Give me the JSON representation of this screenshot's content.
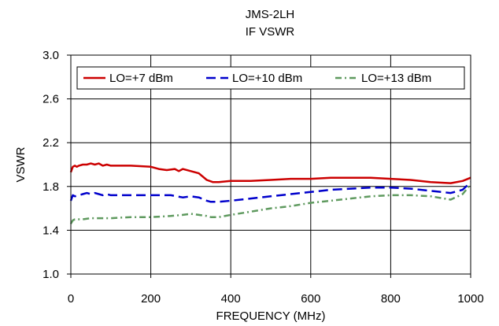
{
  "chart_data": {
    "type": "line",
    "title": "JMS-2LH",
    "subtitle": "IF VSWR",
    "xlabel": "FREQUENCY (MHz)",
    "ylabel": "VSWR",
    "xlim": [
      0,
      1000
    ],
    "ylim": [
      1.0,
      3.0
    ],
    "x_ticks": [
      0,
      200,
      400,
      600,
      800,
      1000
    ],
    "y_ticks": [
      1.0,
      1.4,
      1.8,
      2.2,
      2.6,
      3.0
    ],
    "x_tick_labels": [
      "0",
      "200",
      "400",
      "600",
      "800",
      "1000"
    ],
    "y_tick_labels": [
      "1.0",
      "1.4",
      "1.8",
      "2.2",
      "2.6",
      "3.0"
    ],
    "grid": true,
    "legend_position": "top",
    "series": [
      {
        "name": "LO=+7 dBm",
        "color": "#cc0000",
        "dash": "solid",
        "points": [
          [
            0,
            1.93
          ],
          [
            5,
            1.98
          ],
          [
            10,
            1.99
          ],
          [
            15,
            1.98
          ],
          [
            20,
            1.99
          ],
          [
            30,
            2.0
          ],
          [
            40,
            2.0
          ],
          [
            50,
            2.01
          ],
          [
            60,
            2.0
          ],
          [
            70,
            2.01
          ],
          [
            80,
            1.99
          ],
          [
            90,
            2.0
          ],
          [
            100,
            1.99
          ],
          [
            150,
            1.99
          ],
          [
            200,
            1.98
          ],
          [
            220,
            1.96
          ],
          [
            240,
            1.95
          ],
          [
            260,
            1.96
          ],
          [
            270,
            1.94
          ],
          [
            280,
            1.96
          ],
          [
            300,
            1.94
          ],
          [
            320,
            1.92
          ],
          [
            340,
            1.86
          ],
          [
            355,
            1.84
          ],
          [
            370,
            1.84
          ],
          [
            400,
            1.85
          ],
          [
            450,
            1.85
          ],
          [
            500,
            1.86
          ],
          [
            550,
            1.87
          ],
          [
            600,
            1.87
          ],
          [
            650,
            1.88
          ],
          [
            700,
            1.88
          ],
          [
            750,
            1.88
          ],
          [
            800,
            1.87
          ],
          [
            850,
            1.86
          ],
          [
            900,
            1.84
          ],
          [
            950,
            1.83
          ],
          [
            980,
            1.85
          ],
          [
            1000,
            1.88
          ]
        ]
      },
      {
        "name": "LO=+10 dBm",
        "color": "#0000cc",
        "dash": "dashed",
        "points": [
          [
            0,
            1.67
          ],
          [
            5,
            1.72
          ],
          [
            10,
            1.71
          ],
          [
            20,
            1.72
          ],
          [
            30,
            1.73
          ],
          [
            40,
            1.74
          ],
          [
            50,
            1.73
          ],
          [
            60,
            1.74
          ],
          [
            70,
            1.73
          ],
          [
            80,
            1.72
          ],
          [
            90,
            1.73
          ],
          [
            100,
            1.72
          ],
          [
            150,
            1.72
          ],
          [
            200,
            1.72
          ],
          [
            250,
            1.72
          ],
          [
            280,
            1.7
          ],
          [
            300,
            1.71
          ],
          [
            320,
            1.7
          ],
          [
            340,
            1.67
          ],
          [
            350,
            1.66
          ],
          [
            370,
            1.66
          ],
          [
            400,
            1.67
          ],
          [
            450,
            1.69
          ],
          [
            500,
            1.71
          ],
          [
            550,
            1.73
          ],
          [
            600,
            1.75
          ],
          [
            650,
            1.77
          ],
          [
            700,
            1.78
          ],
          [
            750,
            1.79
          ],
          [
            800,
            1.79
          ],
          [
            850,
            1.78
          ],
          [
            900,
            1.76
          ],
          [
            950,
            1.74
          ],
          [
            980,
            1.77
          ],
          [
            1000,
            1.84
          ]
        ]
      },
      {
        "name": "LO=+13 dBm",
        "color": "#5f9a5f",
        "dash": "dashdot",
        "points": [
          [
            0,
            1.46
          ],
          [
            5,
            1.49
          ],
          [
            10,
            1.5
          ],
          [
            20,
            1.5
          ],
          [
            30,
            1.5
          ],
          [
            50,
            1.51
          ],
          [
            100,
            1.51
          ],
          [
            150,
            1.52
          ],
          [
            200,
            1.52
          ],
          [
            250,
            1.53
          ],
          [
            280,
            1.54
          ],
          [
            300,
            1.55
          ],
          [
            320,
            1.54
          ],
          [
            340,
            1.53
          ],
          [
            350,
            1.52
          ],
          [
            370,
            1.52
          ],
          [
            400,
            1.54
          ],
          [
            450,
            1.57
          ],
          [
            500,
            1.6
          ],
          [
            550,
            1.62
          ],
          [
            600,
            1.65
          ],
          [
            650,
            1.67
          ],
          [
            700,
            1.69
          ],
          [
            750,
            1.71
          ],
          [
            800,
            1.72
          ],
          [
            850,
            1.72
          ],
          [
            900,
            1.71
          ],
          [
            950,
            1.68
          ],
          [
            980,
            1.73
          ],
          [
            1000,
            1.82
          ]
        ]
      }
    ]
  }
}
